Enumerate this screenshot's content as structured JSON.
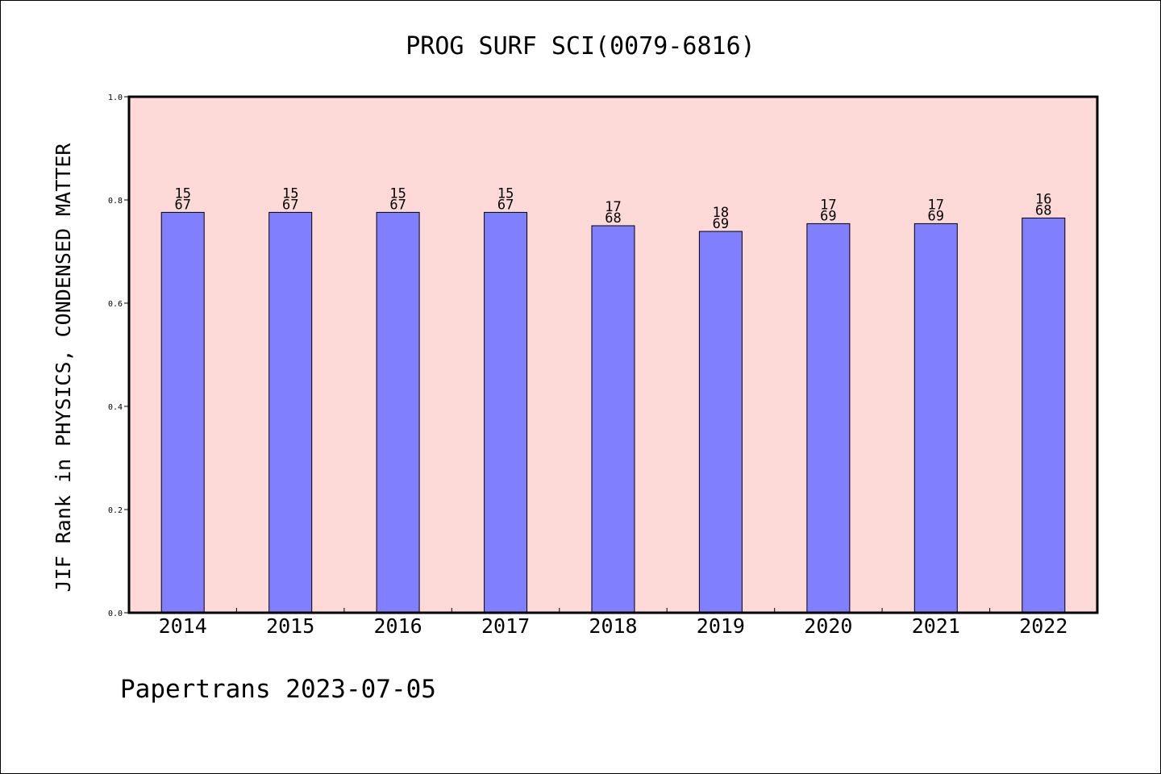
{
  "chart_data": {
    "type": "bar",
    "title": "PROG SURF SCI(0079-6816)",
    "ylabel": "JIF Rank in PHYSICS, CONDENSED MATTER",
    "xlabel": "",
    "categories": [
      "2014",
      "2015",
      "2016",
      "2017",
      "2018",
      "2019",
      "2020",
      "2021",
      "2022"
    ],
    "ranks": [
      "15",
      "15",
      "15",
      "15",
      "17",
      "18",
      "17",
      "17",
      "16"
    ],
    "totals": [
      "67",
      "67",
      "67",
      "67",
      "68",
      "69",
      "69",
      "69",
      "68"
    ],
    "values": [
      0.776,
      0.776,
      0.776,
      0.776,
      0.75,
      0.739,
      0.754,
      0.754,
      0.765
    ],
    "ylim": [
      0,
      1
    ],
    "yticks": [
      "0.0",
      "0.2",
      "0.4",
      "0.6",
      "0.8",
      "1.0"
    ],
    "grid": false,
    "colors": {
      "plot_background": "#fddad8",
      "bar_fill": "#8080ff",
      "bar_stroke": "#000000",
      "axes": "#000000"
    }
  },
  "footer": {
    "credit": "Papertrans 2023-07-05"
  }
}
